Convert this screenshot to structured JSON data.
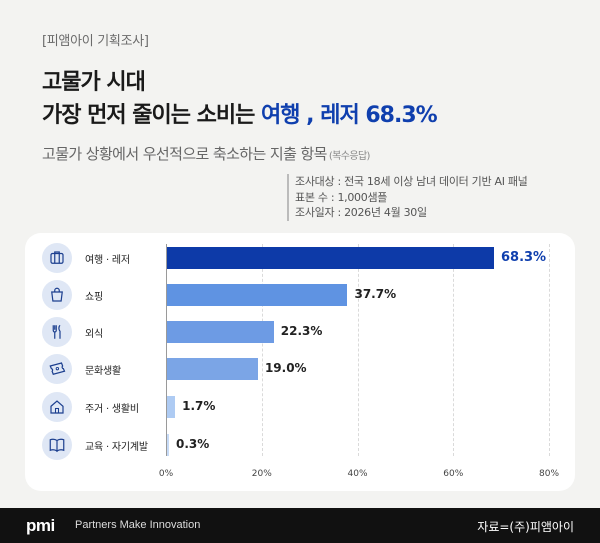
{
  "header": {
    "tag": "[피앰아이 기획조사]",
    "title_line1": "고물가 시대",
    "title_line2_prefix": "가장 먼저 줄이는 소비는 ",
    "title_line2_highlight": "여행 , 레저 68.3%",
    "subtitle": "고물가 상황에서 우선적으로 축소하는 지출 항목",
    "subtitle_note": "(복수응답)"
  },
  "survey_info": {
    "target": "조사대상 : 전국 18세 이상 남녀 데이터 기반 AI 패널",
    "sample": "표본 수 : 1,000샘플",
    "date": "조사일자 : 2026년 4월 30일"
  },
  "chart_data": {
    "type": "bar",
    "orientation": "horizontal",
    "categories": [
      "여행 · 레저",
      "쇼핑",
      "외식",
      "문화생활",
      "주거 · 생활비",
      "교육 · 자기계발"
    ],
    "values": [
      68.3,
      37.7,
      22.3,
      19.0,
      1.7,
      0.3
    ],
    "value_labels": [
      "68.3%",
      "37.7%",
      "22.3%",
      "19.0%",
      "1.7%",
      "0.3%"
    ],
    "icons": [
      "suitcase-icon",
      "shopping-bag-icon",
      "fork-knife-icon",
      "ticket-icon",
      "house-icon",
      "book-icon"
    ],
    "bar_colors": [
      "#0d3aa8",
      "#5f93e2",
      "#6d9be4",
      "#7ba5e6",
      "#aecbf3",
      "#c7dbf7"
    ],
    "xlim": [
      0,
      80
    ],
    "ticks": [
      0,
      20,
      40,
      60,
      80
    ],
    "tick_labels": [
      "0%",
      "20%",
      "40%",
      "60%",
      "80%"
    ],
    "grid": true
  },
  "footer": {
    "logo": "pmi",
    "tagline": "Partners Make Innovation",
    "source": "자료=(주)피앰아이"
  },
  "colors": {
    "accent": "#0f3fae",
    "background": "#f3f3f1",
    "footer": "#111111"
  }
}
